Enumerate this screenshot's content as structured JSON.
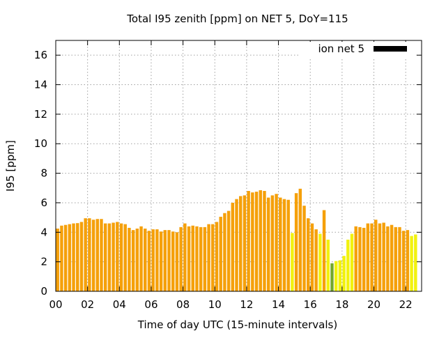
{
  "chart_data": {
    "type": "bar",
    "title": "Total I95 zenith [ppm] on NET 5, DoY=115",
    "xlabel": "Time of day UTC (15-minute intervals)",
    "ylabel": "I95 [ppm]",
    "xlim": [
      0,
      23
    ],
    "ylim": [
      0,
      17
    ],
    "x_ticks": [
      0,
      2,
      4,
      6,
      8,
      10,
      12,
      14,
      16,
      18,
      20,
      22
    ],
    "x_tick_labels": [
      "00",
      "02",
      "04",
      "06",
      "08",
      "10",
      "12",
      "14",
      "16",
      "18",
      "20",
      "22"
    ],
    "y_ticks": [
      0,
      2,
      4,
      6,
      8,
      10,
      12,
      14,
      16
    ],
    "y_tick_labels": [
      "0",
      "2",
      "4",
      "6",
      "8",
      "10",
      "12",
      "14",
      "16"
    ],
    "grid": true,
    "legend": {
      "label": "ion net 5",
      "color": "#000000",
      "placement": "top-right"
    },
    "interval_hours": 0.25,
    "colors": {
      "o": "#f5a00a",
      "y": "#f2f20e",
      "g": "#74a82c"
    },
    "bars": [
      {
        "x": 0.0,
        "v": 4.25,
        "c": "o"
      },
      {
        "x": 0.25,
        "v": 4.45,
        "c": "o"
      },
      {
        "x": 0.5,
        "v": 4.5,
        "c": "o"
      },
      {
        "x": 0.75,
        "v": 4.55,
        "c": "o"
      },
      {
        "x": 1.0,
        "v": 4.6,
        "c": "o"
      },
      {
        "x": 1.25,
        "v": 4.62,
        "c": "o"
      },
      {
        "x": 1.5,
        "v": 4.7,
        "c": "o"
      },
      {
        "x": 1.75,
        "v": 4.95,
        "c": "o"
      },
      {
        "x": 2.0,
        "v": 4.95,
        "c": "o"
      },
      {
        "x": 2.25,
        "v": 4.85,
        "c": "o"
      },
      {
        "x": 2.5,
        "v": 4.9,
        "c": "o"
      },
      {
        "x": 2.75,
        "v": 4.9,
        "c": "o"
      },
      {
        "x": 3.0,
        "v": 4.6,
        "c": "o"
      },
      {
        "x": 3.25,
        "v": 4.6,
        "c": "o"
      },
      {
        "x": 3.5,
        "v": 4.65,
        "c": "o"
      },
      {
        "x": 3.75,
        "v": 4.7,
        "c": "o"
      },
      {
        "x": 4.0,
        "v": 4.6,
        "c": "o"
      },
      {
        "x": 4.25,
        "v": 4.55,
        "c": "o"
      },
      {
        "x": 4.5,
        "v": 4.3,
        "c": "o"
      },
      {
        "x": 4.75,
        "v": 4.15,
        "c": "o"
      },
      {
        "x": 5.0,
        "v": 4.25,
        "c": "o"
      },
      {
        "x": 5.25,
        "v": 4.4,
        "c": "o"
      },
      {
        "x": 5.5,
        "v": 4.25,
        "c": "o"
      },
      {
        "x": 5.75,
        "v": 4.1,
        "c": "o"
      },
      {
        "x": 6.0,
        "v": 4.2,
        "c": "o"
      },
      {
        "x": 6.25,
        "v": 4.2,
        "c": "o"
      },
      {
        "x": 6.5,
        "v": 4.05,
        "c": "o"
      },
      {
        "x": 6.75,
        "v": 4.15,
        "c": "o"
      },
      {
        "x": 7.0,
        "v": 4.15,
        "c": "o"
      },
      {
        "x": 7.25,
        "v": 4.05,
        "c": "o"
      },
      {
        "x": 7.5,
        "v": 4.0,
        "c": "o"
      },
      {
        "x": 7.75,
        "v": 4.35,
        "c": "o"
      },
      {
        "x": 8.0,
        "v": 4.6,
        "c": "o"
      },
      {
        "x": 8.25,
        "v": 4.4,
        "c": "o"
      },
      {
        "x": 8.5,
        "v": 4.45,
        "c": "o"
      },
      {
        "x": 8.75,
        "v": 4.4,
        "c": "o"
      },
      {
        "x": 9.0,
        "v": 4.35,
        "c": "o"
      },
      {
        "x": 9.25,
        "v": 4.35,
        "c": "o"
      },
      {
        "x": 9.5,
        "v": 4.55,
        "c": "o"
      },
      {
        "x": 9.75,
        "v": 4.55,
        "c": "o"
      },
      {
        "x": 10.0,
        "v": 4.7,
        "c": "o"
      },
      {
        "x": 10.25,
        "v": 5.05,
        "c": "o"
      },
      {
        "x": 10.5,
        "v": 5.3,
        "c": "o"
      },
      {
        "x": 10.75,
        "v": 5.45,
        "c": "o"
      },
      {
        "x": 11.0,
        "v": 6.0,
        "c": "o"
      },
      {
        "x": 11.25,
        "v": 6.25,
        "c": "o"
      },
      {
        "x": 11.5,
        "v": 6.45,
        "c": "o"
      },
      {
        "x": 11.75,
        "v": 6.5,
        "c": "o"
      },
      {
        "x": 12.0,
        "v": 6.8,
        "c": "o"
      },
      {
        "x": 12.25,
        "v": 6.7,
        "c": "o"
      },
      {
        "x": 12.5,
        "v": 6.75,
        "c": "o"
      },
      {
        "x": 12.75,
        "v": 6.85,
        "c": "o"
      },
      {
        "x": 13.0,
        "v": 6.8,
        "c": "o"
      },
      {
        "x": 13.25,
        "v": 6.35,
        "c": "o"
      },
      {
        "x": 13.5,
        "v": 6.5,
        "c": "o"
      },
      {
        "x": 13.75,
        "v": 6.6,
        "c": "o"
      },
      {
        "x": 14.0,
        "v": 6.35,
        "c": "o"
      },
      {
        "x": 14.25,
        "v": 6.25,
        "c": "o"
      },
      {
        "x": 14.5,
        "v": 6.2,
        "c": "o"
      },
      {
        "x": 14.75,
        "v": 3.95,
        "c": "y"
      },
      {
        "x": 15.0,
        "v": 6.65,
        "c": "o"
      },
      {
        "x": 15.25,
        "v": 6.95,
        "c": "o"
      },
      {
        "x": 15.5,
        "v": 5.8,
        "c": "o"
      },
      {
        "x": 15.75,
        "v": 4.95,
        "c": "o"
      },
      {
        "x": 16.0,
        "v": 4.6,
        "c": "o"
      },
      {
        "x": 16.25,
        "v": 4.2,
        "c": "o"
      },
      {
        "x": 16.5,
        "v": 3.9,
        "c": "y"
      },
      {
        "x": 16.75,
        "v": 5.5,
        "c": "o"
      },
      {
        "x": 17.0,
        "v": 3.5,
        "c": "y"
      },
      {
        "x": 17.25,
        "v": 1.9,
        "c": "g"
      },
      {
        "x": 17.5,
        "v": 2.05,
        "c": "y"
      },
      {
        "x": 17.75,
        "v": 2.1,
        "c": "y"
      },
      {
        "x": 18.0,
        "v": 2.4,
        "c": "y"
      },
      {
        "x": 18.25,
        "v": 3.5,
        "c": "y"
      },
      {
        "x": 18.5,
        "v": 3.9,
        "c": "y"
      },
      {
        "x": 18.75,
        "v": 4.4,
        "c": "o"
      },
      {
        "x": 19.0,
        "v": 4.35,
        "c": "o"
      },
      {
        "x": 19.25,
        "v": 4.3,
        "c": "o"
      },
      {
        "x": 19.5,
        "v": 4.6,
        "c": "o"
      },
      {
        "x": 19.75,
        "v": 4.6,
        "c": "o"
      },
      {
        "x": 20.0,
        "v": 4.85,
        "c": "o"
      },
      {
        "x": 20.25,
        "v": 4.6,
        "c": "o"
      },
      {
        "x": 20.5,
        "v": 4.65,
        "c": "o"
      },
      {
        "x": 20.75,
        "v": 4.4,
        "c": "o"
      },
      {
        "x": 21.0,
        "v": 4.5,
        "c": "o"
      },
      {
        "x": 21.25,
        "v": 4.35,
        "c": "o"
      },
      {
        "x": 21.5,
        "v": 4.35,
        "c": "o"
      },
      {
        "x": 21.75,
        "v": 4.1,
        "c": "o"
      },
      {
        "x": 22.0,
        "v": 4.15,
        "c": "o"
      },
      {
        "x": 22.25,
        "v": 3.75,
        "c": "y"
      },
      {
        "x": 22.5,
        "v": 3.85,
        "c": "y"
      }
    ]
  }
}
